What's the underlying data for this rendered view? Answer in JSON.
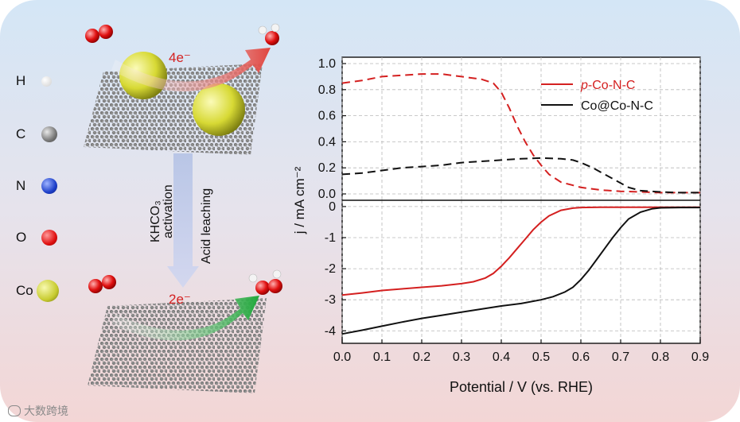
{
  "atom_legend": [
    {
      "symbol": "H",
      "color": "#f4f4f4"
    },
    {
      "symbol": "C",
      "color": "#8e8e8e"
    },
    {
      "symbol": "N",
      "color": "#1d3fc9"
    },
    {
      "symbol": "O",
      "color": "#e01010"
    },
    {
      "symbol": "Co",
      "color": "#c8cc30"
    }
  ],
  "schematic": {
    "top_label": "4e⁻",
    "bottom_label": "2e⁻",
    "step_left": "KHCO₃",
    "step_left2": "activation",
    "step_right": "Acid leaching",
    "top_arrow_color": "#e0443e",
    "bottom_arrow_color": "#1fa83a"
  },
  "watermark": "大数跨境",
  "chart_data": [
    {
      "panel": "top",
      "type": "line",
      "ylabel": "j / mA cm⁻²",
      "ylim": [
        0,
        1.0
      ],
      "yticks": [
        "0.0",
        "0.2",
        "0.4",
        "0.6",
        "0.8",
        "1.0"
      ],
      "ytick_values": [
        0,
        0.2,
        0.4,
        0.6,
        0.8,
        1.0
      ],
      "xlim": [
        0,
        0.9
      ],
      "grid": true,
      "line_style": "dashed",
      "series": [
        {
          "name": "p-Co-N-C",
          "color": "#d42020",
          "x": [
            0,
            0.05,
            0.1,
            0.15,
            0.2,
            0.25,
            0.3,
            0.35,
            0.38,
            0.4,
            0.42,
            0.44,
            0.46,
            0.48,
            0.5,
            0.52,
            0.55,
            0.6,
            0.65,
            0.7,
            0.75,
            0.8,
            0.85,
            0.9
          ],
          "y": [
            0.85,
            0.87,
            0.9,
            0.91,
            0.92,
            0.92,
            0.9,
            0.88,
            0.85,
            0.78,
            0.66,
            0.52,
            0.4,
            0.3,
            0.22,
            0.15,
            0.09,
            0.05,
            0.03,
            0.02,
            0.015,
            0.01,
            0.01,
            0.01
          ]
        },
        {
          "name": "Co@Co-N-C",
          "color": "#111111",
          "x": [
            0,
            0.05,
            0.1,
            0.15,
            0.2,
            0.25,
            0.3,
            0.35,
            0.4,
            0.45,
            0.5,
            0.55,
            0.58,
            0.6,
            0.63,
            0.66,
            0.69,
            0.72,
            0.75,
            0.8,
            0.85,
            0.9
          ],
          "y": [
            0.15,
            0.16,
            0.18,
            0.2,
            0.21,
            0.22,
            0.24,
            0.25,
            0.26,
            0.27,
            0.275,
            0.27,
            0.26,
            0.24,
            0.2,
            0.15,
            0.1,
            0.05,
            0.025,
            0.015,
            0.01,
            0.01
          ]
        }
      ]
    },
    {
      "panel": "bottom",
      "type": "line",
      "xlabel": "Potential / V (vs. RHE)",
      "xlim": [
        0,
        0.9
      ],
      "xticks": [
        "0.0",
        "0.1",
        "0.2",
        "0.3",
        "0.4",
        "0.5",
        "0.6",
        "0.7",
        "0.8",
        "0.9"
      ],
      "xtick_values": [
        0,
        0.1,
        0.2,
        0.3,
        0.4,
        0.5,
        0.6,
        0.7,
        0.8,
        0.9
      ],
      "ylim": [
        -4.3,
        0.1
      ],
      "yticks": [
        "-4",
        "-3",
        "-2",
        "-1",
        "0"
      ],
      "ytick_values": [
        -4,
        -3,
        -2,
        -1,
        0
      ],
      "grid": true,
      "line_style": "solid",
      "series": [
        {
          "name": "p-Co-N-C",
          "color": "#d42020",
          "x": [
            0,
            0.05,
            0.1,
            0.15,
            0.2,
            0.25,
            0.3,
            0.33,
            0.36,
            0.38,
            0.4,
            0.42,
            0.44,
            0.46,
            0.48,
            0.5,
            0.52,
            0.55,
            0.58,
            0.6,
            0.65,
            0.7,
            0.8,
            0.9
          ],
          "y": [
            -2.85,
            -2.78,
            -2.7,
            -2.65,
            -2.6,
            -2.55,
            -2.48,
            -2.42,
            -2.3,
            -2.15,
            -1.92,
            -1.65,
            -1.35,
            -1.05,
            -0.75,
            -0.5,
            -0.3,
            -0.12,
            -0.05,
            -0.03,
            -0.02,
            -0.02,
            -0.02,
            -0.02
          ]
        },
        {
          "name": "Co@Co-N-C",
          "color": "#111111",
          "x": [
            0,
            0.05,
            0.1,
            0.15,
            0.2,
            0.25,
            0.3,
            0.35,
            0.4,
            0.45,
            0.5,
            0.53,
            0.56,
            0.58,
            0.6,
            0.62,
            0.64,
            0.66,
            0.68,
            0.7,
            0.72,
            0.75,
            0.78,
            0.8,
            0.85,
            0.9
          ],
          "y": [
            -4.1,
            -3.98,
            -3.85,
            -3.72,
            -3.6,
            -3.5,
            -3.4,
            -3.3,
            -3.2,
            -3.12,
            -3.0,
            -2.9,
            -2.75,
            -2.6,
            -2.35,
            -2.05,
            -1.7,
            -1.35,
            -1.0,
            -0.68,
            -0.4,
            -0.18,
            -0.07,
            -0.04,
            -0.03,
            -0.03
          ]
        }
      ]
    }
  ],
  "legend": [
    {
      "label_prefix": "p",
      "label_rest": "-Co-N-C",
      "color": "#d42020"
    },
    {
      "label_prefix": "",
      "label_rest": "Co@Co-N-C",
      "color": "#111111"
    }
  ]
}
